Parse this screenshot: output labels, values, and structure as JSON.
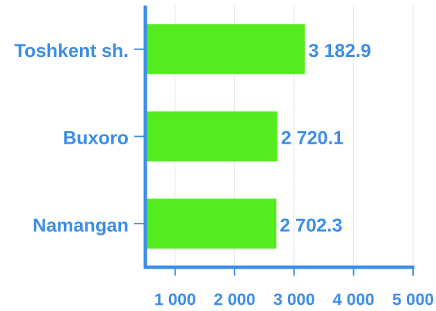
{
  "chart_data": {
    "type": "bar",
    "orientation": "horizontal",
    "categories": [
      "Toshkent sh.",
      "Buxoro",
      "Namangan"
    ],
    "values": [
      3182.9,
      2720.1,
      2702.3
    ],
    "value_labels": [
      "3 182.9",
      "2 720.1",
      "2 702.3"
    ],
    "color": "#55ec1f",
    "xlim": [
      500,
      5000
    ],
    "xticks": [
      {
        "value": 1000,
        "label": "1 000"
      },
      {
        "value": 2000,
        "label": "2 000"
      },
      {
        "value": 3000,
        "label": "3 000"
      },
      {
        "value": 4000,
        "label": "4 000"
      },
      {
        "value": 5000,
        "label": "5 000"
      }
    ],
    "grid": true
  }
}
